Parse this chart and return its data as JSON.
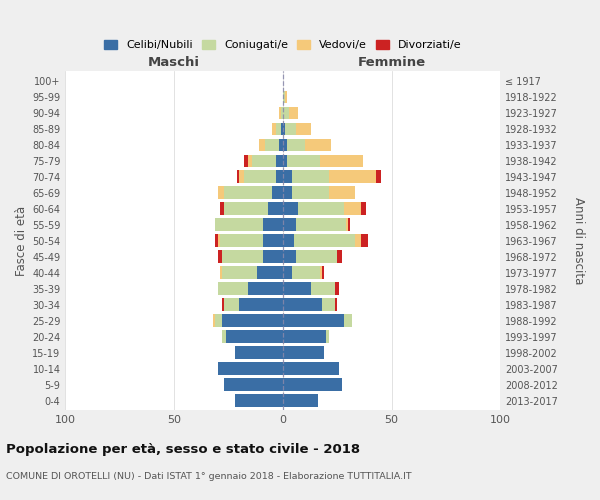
{
  "age_groups": [
    "0-4",
    "5-9",
    "10-14",
    "15-19",
    "20-24",
    "25-29",
    "30-34",
    "35-39",
    "40-44",
    "45-49",
    "50-54",
    "55-59",
    "60-64",
    "65-69",
    "70-74",
    "75-79",
    "80-84",
    "85-89",
    "90-94",
    "95-99",
    "100+"
  ],
  "birth_years": [
    "2013-2017",
    "2008-2012",
    "2003-2007",
    "1998-2002",
    "1993-1997",
    "1988-1992",
    "1983-1987",
    "1978-1982",
    "1973-1977",
    "1968-1972",
    "1963-1967",
    "1958-1962",
    "1953-1957",
    "1948-1952",
    "1943-1947",
    "1938-1942",
    "1933-1937",
    "1928-1932",
    "1923-1927",
    "1918-1922",
    "≤ 1917"
  ],
  "colors": {
    "celibi": "#3a6ea5",
    "coniugati": "#c5d9a0",
    "vedovi": "#f5c97a",
    "divorziati": "#cc2222"
  },
  "maschi": {
    "celibi": [
      22,
      27,
      30,
      22,
      26,
      28,
      20,
      16,
      12,
      9,
      9,
      9,
      7,
      5,
      3,
      3,
      2,
      1,
      0,
      0,
      0
    ],
    "coniugati": [
      0,
      0,
      0,
      0,
      2,
      3,
      7,
      14,
      16,
      19,
      20,
      22,
      20,
      22,
      15,
      11,
      6,
      2,
      1,
      0,
      0
    ],
    "vedovi": [
      0,
      0,
      0,
      0,
      0,
      1,
      0,
      0,
      1,
      0,
      1,
      0,
      0,
      3,
      2,
      2,
      3,
      2,
      1,
      0,
      0
    ],
    "divorziati": [
      0,
      0,
      0,
      0,
      0,
      0,
      1,
      0,
      0,
      2,
      1,
      0,
      2,
      0,
      1,
      2,
      0,
      0,
      0,
      0,
      0
    ]
  },
  "femmine": {
    "celibi": [
      16,
      27,
      26,
      19,
      20,
      28,
      18,
      13,
      4,
      6,
      5,
      6,
      7,
      4,
      4,
      2,
      2,
      1,
      0,
      0,
      0
    ],
    "coniugati": [
      0,
      0,
      0,
      0,
      1,
      4,
      6,
      11,
      13,
      19,
      28,
      23,
      21,
      17,
      17,
      15,
      8,
      5,
      3,
      1,
      0
    ],
    "vedovi": [
      0,
      0,
      0,
      0,
      0,
      0,
      0,
      0,
      1,
      0,
      3,
      1,
      8,
      12,
      22,
      20,
      12,
      7,
      4,
      1,
      0
    ],
    "divorziati": [
      0,
      0,
      0,
      0,
      0,
      0,
      1,
      2,
      1,
      2,
      3,
      1,
      2,
      0,
      2,
      0,
      0,
      0,
      0,
      0,
      0
    ]
  },
  "title": "Popolazione per età, sesso e stato civile - 2018",
  "subtitle": "COMUNE DI OROTELLI (NU) - Dati ISTAT 1° gennaio 2018 - Elaborazione TUTTITALIA.IT",
  "xlabel_left": "Maschi",
  "xlabel_right": "Femmine",
  "ylabel": "Fasce di età",
  "ylabel_right": "Anni di nascita",
  "xlim": 100,
  "bg_color": "#efefef",
  "plot_bg": "#ffffff",
  "legend_labels": [
    "Celibi/Nubili",
    "Coniugati/e",
    "Vedovi/e",
    "Divorziati/e"
  ]
}
